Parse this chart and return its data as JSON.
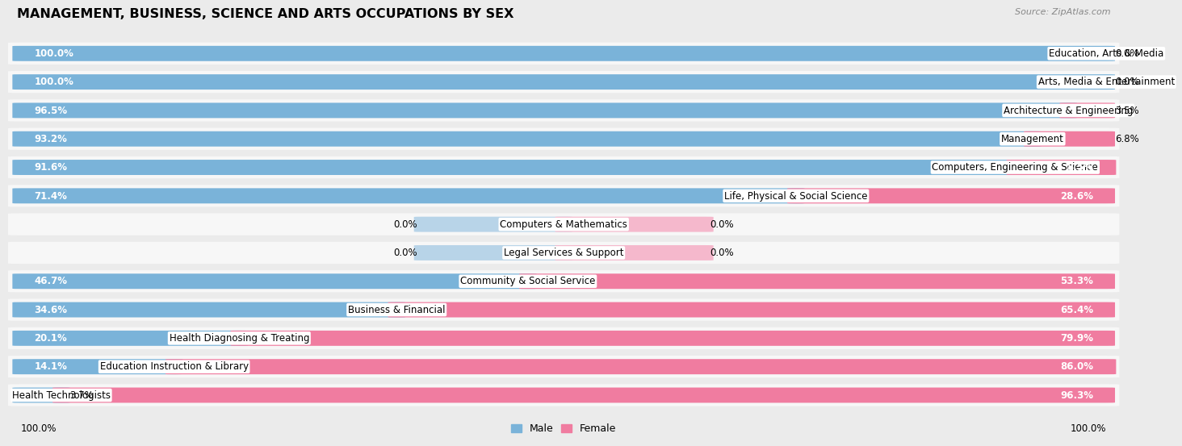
{
  "title": "MANAGEMENT, BUSINESS, SCIENCE AND ARTS OCCUPATIONS BY SEX",
  "source": "Source: ZipAtlas.com",
  "categories": [
    "Education, Arts & Media",
    "Arts, Media & Entertainment",
    "Architecture & Engineering",
    "Management",
    "Computers, Engineering & Science",
    "Life, Physical & Social Science",
    "Computers & Mathematics",
    "Legal Services & Support",
    "Community & Social Service",
    "Business & Financial",
    "Health Diagnosing & Treating",
    "Education Instruction & Library",
    "Health Technologists"
  ],
  "male": [
    100.0,
    100.0,
    96.5,
    93.2,
    91.6,
    71.4,
    0.0,
    0.0,
    46.7,
    34.6,
    20.1,
    14.1,
    3.7
  ],
  "female": [
    0.0,
    0.0,
    3.5,
    6.8,
    8.5,
    28.6,
    0.0,
    0.0,
    53.3,
    65.4,
    79.9,
    86.0,
    96.3
  ],
  "male_color": "#7ab3d9",
  "female_color": "#f07ca0",
  "male_color_light": "#b8d4e8",
  "female_color_light": "#f5b8cc",
  "bg_color": "#ebebeb",
  "row_bg": "#f7f7f7",
  "title_fontsize": 11.5,
  "label_fontsize": 8.5,
  "pct_fontsize": 8.5
}
